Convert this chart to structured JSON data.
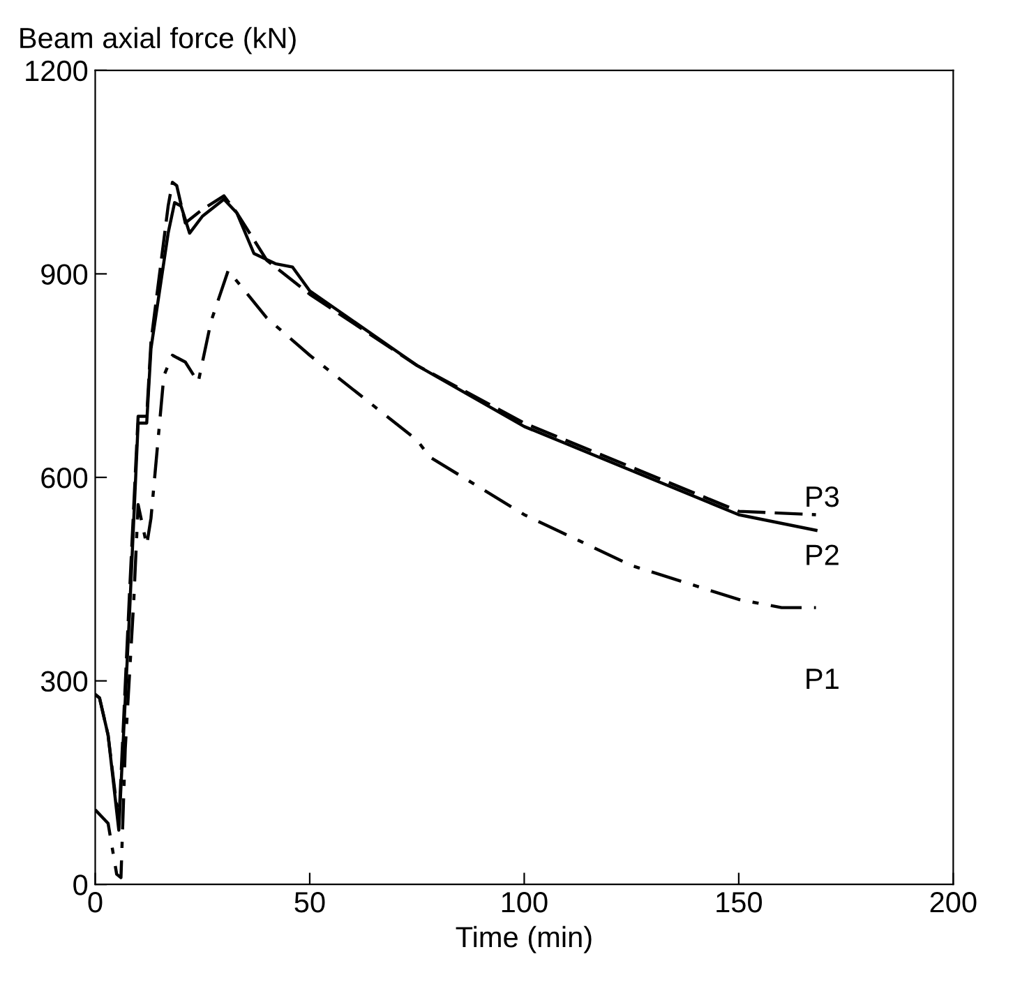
{
  "chart_data": {
    "type": "line",
    "xlabel": "Time (min)",
    "ylabel": "Beam axial force (kN)",
    "xlim": [
      0,
      200
    ],
    "ylim": [
      0,
      1200
    ],
    "xticks": [
      0,
      50,
      100,
      150,
      200
    ],
    "yticks": [
      0,
      300,
      600,
      900,
      1200
    ],
    "grid": false,
    "legend": false,
    "marker": "none",
    "series": [
      {
        "name": "P1",
        "color": "#000000",
        "line_style": "dashdot",
        "x": [
          0,
          3,
          5,
          6,
          7,
          9,
          10,
          12,
          13,
          16,
          18,
          21,
          24,
          27,
          31,
          40,
          50,
          75,
          78,
          100,
          125,
          150,
          160,
          168
        ],
        "values": [
          110,
          90,
          15,
          10,
          200,
          420,
          560,
          500,
          540,
          750,
          780,
          770,
          740,
          830,
          905,
          835,
          780,
          655,
          630,
          545,
          470,
          420,
          408,
          408
        ]
      },
      {
        "name": "P2",
        "color": "#000000",
        "line_style": "solid",
        "x": [
          0,
          1,
          3,
          5.5,
          8,
          10,
          12,
          13,
          17,
          18.5,
          20,
          22,
          25,
          30,
          33,
          37,
          42,
          46,
          50,
          75,
          100,
          125,
          150,
          168
        ],
        "values": [
          280,
          275,
          220,
          80,
          400,
          680,
          680,
          790,
          960,
          1005,
          1000,
          960,
          985,
          1010,
          990,
          930,
          915,
          910,
          875,
          765,
          675,
          610,
          545,
          522
        ]
      },
      {
        "name": "P3",
        "color": "#000000",
        "line_style": "dashed",
        "x": [
          0,
          1,
          3,
          5.5,
          8,
          10,
          12,
          13,
          17,
          18,
          19,
          21,
          25,
          30,
          33,
          40,
          50,
          75,
          100,
          125,
          150,
          168
        ],
        "values": [
          280,
          275,
          220,
          90,
          430,
          690,
          690,
          800,
          1000,
          1035,
          1030,
          975,
          995,
          1015,
          990,
          920,
          870,
          765,
          680,
          615,
          550,
          545
        ]
      }
    ]
  }
}
